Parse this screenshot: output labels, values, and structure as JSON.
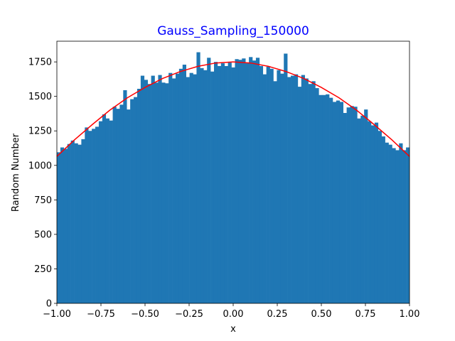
{
  "chart_data": {
    "type": "bar",
    "title": "Gauss_Sampling_150000",
    "xlabel": "x",
    "ylabel": "Random Number",
    "xlim": [
      -1.0,
      1.0
    ],
    "ylim": [
      0,
      1900
    ],
    "xticks": [
      -1.0,
      -0.75,
      -0.5,
      -0.25,
      0.0,
      0.25,
      0.5,
      0.75,
      1.0
    ],
    "xtick_labels": [
      "−1.00",
      "−0.75",
      "−0.50",
      "−0.25",
      "0.00",
      "0.25",
      "0.50",
      "0.75",
      "1.00"
    ],
    "yticks": [
      0,
      250,
      500,
      750,
      1000,
      1250,
      1500,
      1750
    ],
    "ytick_labels": [
      "0",
      "250",
      "500",
      "750",
      "1000",
      "1250",
      "1500",
      "1750"
    ],
    "grid": false,
    "colors": {
      "bars": "#1f77b4",
      "curve": "#ff0000",
      "title": "#0000ff"
    },
    "bins": {
      "start": -1.0,
      "width": 0.0167,
      "counts": [
        1095,
        1130,
        1120,
        1155,
        1180,
        1160,
        1150,
        1190,
        1275,
        1250,
        1265,
        1280,
        1320,
        1370,
        1340,
        1325,
        1425,
        1410,
        1440,
        1545,
        1405,
        1480,
        1495,
        1555,
        1650,
        1620,
        1590,
        1650,
        1600,
        1655,
        1600,
        1595,
        1670,
        1630,
        1665,
        1700,
        1730,
        1640,
        1670,
        1660,
        1820,
        1705,
        1690,
        1780,
        1680,
        1750,
        1720,
        1740,
        1720,
        1745,
        1710,
        1770,
        1765,
        1775,
        1740,
        1785,
        1760,
        1780,
        1720,
        1660,
        1715,
        1700,
        1610,
        1690,
        1665,
        1810,
        1640,
        1650,
        1660,
        1570,
        1655,
        1630,
        1590,
        1610,
        1560,
        1510,
        1510,
        1515,
        1490,
        1460,
        1470,
        1460,
        1380,
        1420,
        1430,
        1425,
        1340,
        1360,
        1405,
        1320,
        1290,
        1310,
        1250,
        1210,
        1165,
        1150,
        1125,
        1110,
        1160,
        1110,
        1130
      ]
    },
    "curve": {
      "type": "line",
      "x": [
        -1.0,
        -0.9,
        -0.8,
        -0.7,
        -0.6,
        -0.5,
        -0.4,
        -0.3,
        -0.2,
        -0.1,
        0.0,
        0.1,
        0.2,
        0.3,
        0.4,
        0.5,
        0.6,
        0.7,
        0.8,
        0.9,
        1.0
      ],
      "y": [
        1065,
        1185,
        1295,
        1400,
        1490,
        1565,
        1630,
        1680,
        1718,
        1742,
        1750,
        1742,
        1718,
        1680,
        1630,
        1565,
        1490,
        1400,
        1295,
        1185,
        1065
      ]
    }
  }
}
